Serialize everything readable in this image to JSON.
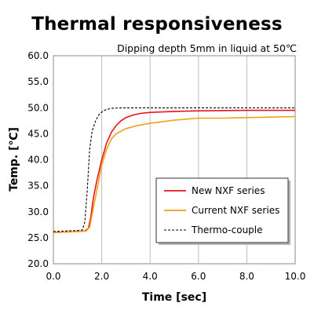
{
  "chart_data": {
    "type": "line",
    "title": "Thermal responsiveness",
    "subtitle": "Dipping depth 5mm in liquid at 50℃",
    "xlabel": "Time [sec]",
    "ylabel": "Temp. [℃]",
    "xlim": [
      0,
      10
    ],
    "ylim": [
      20,
      60
    ],
    "x_ticks": [
      "0.0",
      "2.0",
      "4.0",
      "6.0",
      "8.0",
      "10.0"
    ],
    "y_ticks": [
      "20.0",
      "25.0",
      "30.0",
      "35.0",
      "40.0",
      "45.0",
      "50.0",
      "55.0",
      "60.0"
    ],
    "grid": "vertical",
    "legend_position": "bottom-right",
    "series": [
      {
        "name": "New NXF series",
        "color": "#e8141b",
        "style": "solid",
        "points": [
          [
            0,
            26.0
          ],
          [
            0.5,
            26.1
          ],
          [
            1.0,
            26.2
          ],
          [
            1.3,
            26.3
          ],
          [
            1.45,
            26.8
          ],
          [
            1.55,
            29.0
          ],
          [
            1.65,
            32.5
          ],
          [
            1.8,
            36.0
          ],
          [
            2.0,
            40.0
          ],
          [
            2.2,
            43.2
          ],
          [
            2.4,
            45.3
          ],
          [
            2.6,
            46.6
          ],
          [
            2.8,
            47.5
          ],
          [
            3.0,
            48.1
          ],
          [
            3.3,
            48.6
          ],
          [
            3.6,
            48.9
          ],
          [
            4.0,
            49.1
          ],
          [
            5.0,
            49.3
          ],
          [
            6.0,
            49.4
          ],
          [
            8.0,
            49.5
          ],
          [
            10.0,
            49.5
          ]
        ]
      },
      {
        "name": "Current NXF series",
        "color": "#f0a019",
        "style": "solid",
        "points": [
          [
            0,
            26.0
          ],
          [
            0.5,
            26.1
          ],
          [
            1.0,
            26.2
          ],
          [
            1.35,
            26.3
          ],
          [
            1.5,
            27.0
          ],
          [
            1.6,
            29.5
          ],
          [
            1.75,
            33.0
          ],
          [
            1.9,
            36.5
          ],
          [
            2.0,
            39.0
          ],
          [
            2.2,
            42.0
          ],
          [
            2.4,
            44.0
          ],
          [
            2.6,
            45.0
          ],
          [
            2.8,
            45.5
          ],
          [
            3.0,
            46.0
          ],
          [
            3.5,
            46.6
          ],
          [
            4.0,
            47.0
          ],
          [
            5.0,
            47.6
          ],
          [
            6.0,
            48.0
          ],
          [
            7.0,
            48.0
          ],
          [
            8.0,
            48.1
          ],
          [
            9.0,
            48.2
          ],
          [
            10.0,
            48.3
          ]
        ]
      },
      {
        "name": "Thermo-couple",
        "color": "#000000",
        "style": "dashed",
        "points": [
          [
            0,
            26.2
          ],
          [
            0.5,
            26.3
          ],
          [
            1.0,
            26.4
          ],
          [
            1.2,
            26.5
          ],
          [
            1.3,
            28.0
          ],
          [
            1.4,
            34.0
          ],
          [
            1.5,
            42.0
          ],
          [
            1.6,
            45.5
          ],
          [
            1.75,
            47.5
          ],
          [
            1.9,
            48.8
          ],
          [
            2.1,
            49.5
          ],
          [
            2.4,
            49.9
          ],
          [
            3.0,
            50.0
          ],
          [
            10.0,
            50.0
          ]
        ]
      }
    ]
  }
}
